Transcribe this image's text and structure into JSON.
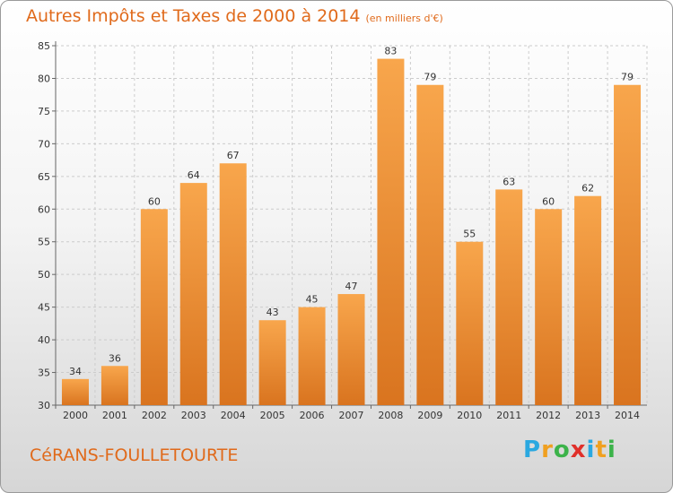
{
  "header": {
    "title": "Autres Impôts et Taxes de 2000 à 2014",
    "unit": "(en milliers d'€)"
  },
  "footer": {
    "commune": "CéRANS-FOULLETOURTE",
    "logo_letters": [
      "P",
      "r",
      "o",
      "x",
      "i",
      "t",
      "i"
    ],
    "logo_colors": [
      "#2aa8e0",
      "#f0a020",
      "#3cb34a",
      "#e0302a",
      "#2aa8e0",
      "#f0a020",
      "#3cb34a"
    ]
  },
  "colors": {
    "bar_light": "#f8a64c",
    "bar_dark": "#d9741f",
    "title": "#e06a1b",
    "grid": "#cccccc"
  },
  "chart_data": {
    "type": "bar",
    "title": "Autres Impôts et Taxes de 2000 à 2014",
    "subtitle": "(en milliers d'€)",
    "categories": [
      "2000",
      "2001",
      "2002",
      "2003",
      "2004",
      "2005",
      "2006",
      "2007",
      "2008",
      "2009",
      "2010",
      "2011",
      "2012",
      "2013",
      "2014"
    ],
    "values": [
      34,
      36,
      60,
      64,
      67,
      43,
      45,
      47,
      83,
      79,
      55,
      63,
      60,
      62,
      79
    ],
    "ylim": [
      30,
      85
    ],
    "yticks": [
      30,
      35,
      40,
      45,
      50,
      55,
      60,
      65,
      70,
      75,
      80,
      85
    ],
    "grid": "horizontal dashed",
    "data_labels": true
  }
}
